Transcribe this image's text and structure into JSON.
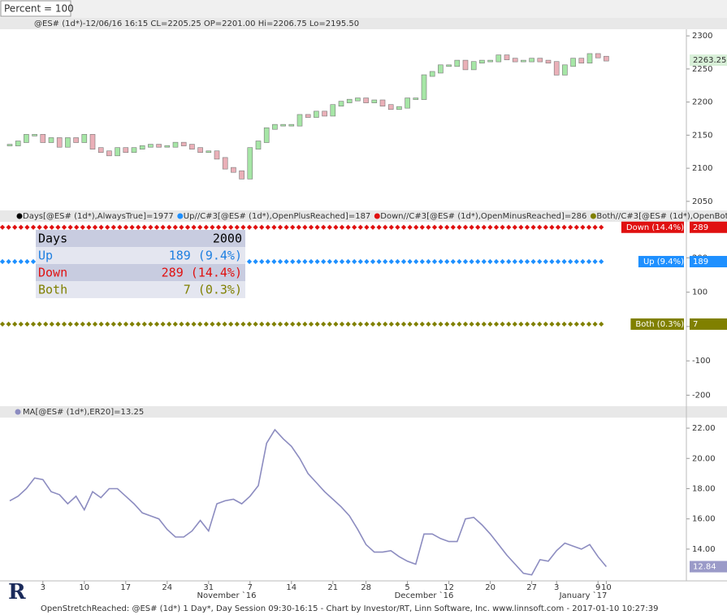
{
  "toolbar": {
    "zoom": "Percent = 100"
  },
  "footer": "OpenStretchReached: @ES# (1d*) 1 Day*, Day Session 09:30-16:15 - Chart by Investor/RT, Linn Software, Inc. www.linnsoft.com - 2017-01-10 10:27:39",
  "stats_table": {
    "rows": [
      {
        "label": "Days",
        "value": "2000",
        "color": "#000000"
      },
      {
        "label": "Up",
        "value": "189 (9.4%)",
        "color": "#1e7fe0"
      },
      {
        "label": "Down",
        "value": "289 (14.4%)",
        "color": "#e01010"
      },
      {
        "label": "Both",
        "value": "7 (0.3%)",
        "color": "#808000"
      }
    ]
  },
  "chart_data": [
    {
      "type": "candlestick",
      "title": "@ES# (1d*)-12/06/16 16:15 CL=2205.25 OP=2201.00 Hi=2206.75 Lo=2195.50",
      "up_color": "#a6e6a6",
      "down_color": "#eab0b8",
      "values": [
        2135,
        2140,
        2150,
        2150,
        2140,
        2145,
        2133,
        2145,
        2140,
        2150,
        2130,
        2125,
        2120,
        2130,
        2125,
        2130,
        2133,
        2135,
        2133,
        2133,
        2138,
        2135,
        2130,
        2125,
        2125,
        2115,
        2100,
        2095,
        2085,
        2130,
        2140,
        2160,
        2165,
        2165,
        2165,
        2180,
        2178,
        2185,
        2180,
        2195,
        2200,
        2203,
        2205,
        2200,
        2202,
        2195,
        2190,
        2192,
        2205,
        2205,
        2240,
        2245,
        2255,
        2255,
        2262,
        2250,
        2260,
        2262,
        2262,
        2270,
        2265,
        2262,
        2262,
        2265,
        2262,
        2260,
        2242,
        2255,
        2265,
        2260,
        2272,
        2268,
        2263.25
      ],
      "ylim": [
        2040,
        2310
      ],
      "yticks": [
        2050,
        2100,
        2150,
        2200,
        2250,
        2300
      ]
    },
    {
      "type": "dots",
      "legend": [
        "Days[@ES# (1d*),AlwaysTrue]=1977",
        "Up//C#3[@ES# (1d*),OpenPlusReached]=187",
        "Down//C#3[@ES# (1d*),OpenMinusReached]=286",
        "Both//C#3[@ES# (1d*),OpenBothR"
      ],
      "series": [
        {
          "name": "Down (14.4%)",
          "color": "#e01010",
          "value": 289
        },
        {
          "name": "Up (9.4%)",
          "color": "#1e90ff",
          "value": 189
        },
        {
          "name": "Both (0.3%)",
          "color": "#808000",
          "value": 7
        }
      ],
      "ylim": [
        -225,
        305
      ],
      "yticks": [
        -200,
        -100,
        0,
        100,
        200
      ]
    },
    {
      "type": "line",
      "title": "MA[@ES# (1d*),ER20]=13.25",
      "color": "#8c8cc0",
      "categories": [
        null,
        null,
        null,
        null,
        "3",
        null,
        null,
        null,
        null,
        "10",
        null,
        null,
        null,
        null,
        "17",
        null,
        null,
        null,
        null,
        "24",
        null,
        null,
        null,
        null,
        "31",
        null,
        null,
        null,
        null,
        "7",
        null,
        null,
        null,
        null,
        "14",
        null,
        null,
        null,
        null,
        "21",
        null,
        null,
        null,
        "28",
        null,
        null,
        null,
        null,
        "5",
        null,
        null,
        null,
        null,
        "12",
        null,
        null,
        null,
        null,
        "20",
        null,
        null,
        null,
        null,
        "27",
        null,
        null,
        "3",
        null,
        null,
        null,
        null,
        "9",
        "10"
      ],
      "month_labels": [
        "November `16",
        "December `16",
        "January `17"
      ],
      "values": [
        17.2,
        17.5,
        18.0,
        18.7,
        18.6,
        17.8,
        17.6,
        17.0,
        17.5,
        16.6,
        17.8,
        17.4,
        18.0,
        18.0,
        17.5,
        17.0,
        16.4,
        16.2,
        16.0,
        15.3,
        14.8,
        14.8,
        15.2,
        15.9,
        15.2,
        17.0,
        17.2,
        17.3,
        17.0,
        17.5,
        18.2,
        21.0,
        21.9,
        21.3,
        20.8,
        20.0,
        19.0,
        18.4,
        17.8,
        17.3,
        16.8,
        16.2,
        15.3,
        14.3,
        13.8,
        13.8,
        13.9,
        13.5,
        13.2,
        13.0,
        15.0,
        15.0,
        14.7,
        14.5,
        14.5,
        16.0,
        16.1,
        15.6,
        15.0,
        14.3,
        13.6,
        13.0,
        12.4,
        12.3,
        13.3,
        13.2,
        13.9,
        14.4,
        14.2,
        14.0,
        14.3,
        13.5,
        12.84
      ],
      "ylim": [
        11.9,
        22.7
      ],
      "yticks": [
        {
          "value": 14,
          "label": "14.00"
        },
        {
          "value": 16,
          "label": "16.00"
        },
        {
          "value": 18,
          "label": "18.00"
        },
        {
          "value": 20,
          "label": "20.00"
        },
        {
          "value": 22,
          "label": "22.00"
        }
      ]
    }
  ]
}
